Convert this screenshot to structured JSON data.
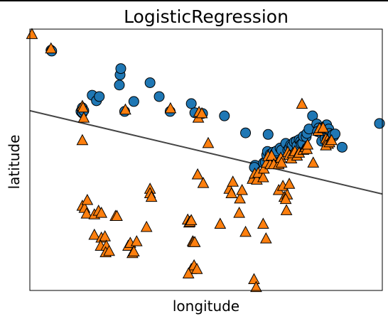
{
  "chart_data": {
    "type": "scatter",
    "title": "LogisticRegression",
    "xlabel": "longitude",
    "ylabel": "latitude",
    "xlim": [
      0,
      100
    ],
    "ylim": [
      0,
      100
    ],
    "grid": false,
    "ticks": false,
    "legend": "none",
    "decision_boundary": {
      "x": [
        0,
        100
      ],
      "y": [
        68.8,
        36.9
      ]
    },
    "boundary_color": "#444444",
    "series": [
      {
        "marker": "circle",
        "color": "#1f77b4",
        "points": [
          [
            6.0,
            91.9
          ],
          [
            6.2,
            91.6
          ],
          [
            14.9,
            69.9
          ],
          [
            14.5,
            68.5
          ],
          [
            14.9,
            67.9
          ],
          [
            14.9,
            68.2
          ],
          [
            15.3,
            68.8
          ],
          [
            17.7,
            74.7
          ],
          [
            18.9,
            72.6
          ],
          [
            19.7,
            74.2
          ],
          [
            25.6,
            82.5
          ],
          [
            25.8,
            84.9
          ],
          [
            25.4,
            78.6
          ],
          [
            26.9,
            68.5
          ],
          [
            29.5,
            72.3
          ],
          [
            34.1,
            79.5
          ],
          [
            36.7,
            74.2
          ],
          [
            39.8,
            68.5
          ],
          [
            45.8,
            71.5
          ],
          [
            46.8,
            68.0
          ],
          [
            49.0,
            67.7
          ],
          [
            55.2,
            66.8
          ],
          [
            61.2,
            60.3
          ],
          [
            67.6,
            59.7
          ],
          [
            63.9,
            47.9
          ],
          [
            63.7,
            47.1
          ],
          [
            66.3,
            48.8
          ],
          [
            66.8,
            49.0
          ],
          [
            67.2,
            51.8
          ],
          [
            67.4,
            53.2
          ],
          [
            68.2,
            52.1
          ],
          [
            68.8,
            51.0
          ],
          [
            69.0,
            52.9
          ],
          [
            69.6,
            52.6
          ],
          [
            70.0,
            53.4
          ],
          [
            71.0,
            54.5
          ],
          [
            71.4,
            53.7
          ],
          [
            72.6,
            56.3
          ],
          [
            73.2,
            53.7
          ],
          [
            73.6,
            54.5
          ],
          [
            74.0,
            55.7
          ],
          [
            74.4,
            55.4
          ],
          [
            75.0,
            56.8
          ],
          [
            75.6,
            57.1
          ],
          [
            75.8,
            55.4
          ],
          [
            76.4,
            57.7
          ],
          [
            76.8,
            57.1
          ],
          [
            77.0,
            56.0
          ],
          [
            77.4,
            56.3
          ],
          [
            77.6,
            59.0
          ],
          [
            78.4,
            58.8
          ],
          [
            78.6,
            60.1
          ],
          [
            79.2,
            61.8
          ],
          [
            80.2,
            66.8
          ],
          [
            81.4,
            63.7
          ],
          [
            82.0,
            62.2
          ],
          [
            81.6,
            60.8
          ],
          [
            82.6,
            60.3
          ],
          [
            83.2,
            60.8
          ],
          [
            84.2,
            63.4
          ],
          [
            84.8,
            61.8
          ],
          [
            85.0,
            60.1
          ],
          [
            82.8,
            57.1
          ],
          [
            83.8,
            58.2
          ],
          [
            84.4,
            57.9
          ],
          [
            85.4,
            58.5
          ],
          [
            86.2,
            59.0
          ],
          [
            86.0,
            59.6
          ],
          [
            86.6,
            59.9
          ],
          [
            88.6,
            54.8
          ],
          [
            99.2,
            63.9
          ]
        ]
      },
      {
        "marker": "triangle",
        "color": "#ff7f0e",
        "points": [
          [
            0.6,
            98.0
          ],
          [
            6.0,
            92.5
          ],
          [
            14.9,
            70.5
          ],
          [
            15.1,
            69.9
          ],
          [
            15.3,
            66.0
          ],
          [
            14.9,
            57.4
          ],
          [
            14.9,
            32.3
          ],
          [
            15.5,
            31.5
          ],
          [
            16.3,
            34.5
          ],
          [
            16.1,
            29.3
          ],
          [
            18.3,
            29.0
          ],
          [
            19.5,
            30.4
          ],
          [
            20.3,
            29.6
          ],
          [
            18.3,
            21.2
          ],
          [
            20.3,
            20.1
          ],
          [
            21.3,
            20.6
          ],
          [
            20.1,
            17.0
          ],
          [
            21.7,
            17.0
          ],
          [
            21.5,
            14.5
          ],
          [
            22.5,
            15.0
          ],
          [
            24.3,
            28.4
          ],
          [
            24.7,
            28.4
          ],
          [
            27.1,
            69.1
          ],
          [
            27.9,
            17.0
          ],
          [
            28.5,
            18.1
          ],
          [
            29.1,
            14.2
          ],
          [
            29.5,
            14.8
          ],
          [
            30.3,
            18.7
          ],
          [
            34.1,
            38.8
          ],
          [
            34.1,
            37.1
          ],
          [
            34.5,
            35.7
          ],
          [
            33.1,
            24.2
          ],
          [
            39.9,
            69.6
          ],
          [
            44.8,
            27.0
          ],
          [
            45.2,
            25.9
          ],
          [
            45.4,
            26.2
          ],
          [
            45.8,
            26.8
          ],
          [
            46.2,
            18.7
          ],
          [
            46.4,
            18.4
          ],
          [
            46.8,
            18.4
          ],
          [
            45.8,
            8.1
          ],
          [
            46.6,
            9.5
          ],
          [
            45.0,
            6.4
          ],
          [
            47.4,
            8.1
          ],
          [
            47.8,
            66.0
          ],
          [
            48.0,
            68.2
          ],
          [
            48.8,
            67.7
          ],
          [
            50.6,
            56.3
          ],
          [
            47.6,
            44.3
          ],
          [
            49.2,
            41.0
          ],
          [
            54.0,
            25.4
          ],
          [
            56.6,
            38.8
          ],
          [
            57.2,
            37.1
          ],
          [
            57.6,
            41.5
          ],
          [
            59.6,
            35.1
          ],
          [
            59.4,
            29.6
          ],
          [
            60.2,
            38.3
          ],
          [
            61.2,
            22.3
          ],
          [
            63.4,
            43.2
          ],
          [
            63.2,
            42.6
          ],
          [
            63.8,
            44.6
          ],
          [
            64.4,
            42.3
          ],
          [
            64.8,
            44.9
          ],
          [
            66.2,
            43.2
          ],
          [
            66.4,
            46.5
          ],
          [
            66.2,
            25.4
          ],
          [
            67.2,
            48.8
          ],
          [
            67.6,
            51.3
          ],
          [
            68.2,
            48.2
          ],
          [
            68.6,
            51.5
          ],
          [
            69.2,
            48.2
          ],
          [
            70.6,
            48.2
          ],
          [
            71.2,
            50.7
          ],
          [
            71.4,
            48.8
          ],
          [
            70.6,
            38.3
          ],
          [
            71.8,
            39.9
          ],
          [
            72.2,
            35.7
          ],
          [
            73.0,
            36.6
          ],
          [
            72.6,
            34.9
          ],
          [
            73.6,
            40.7
          ],
          [
            73.2,
            52.9
          ],
          [
            73.6,
            51.8
          ],
          [
            74.2,
            50.4
          ],
          [
            74.6,
            52.4
          ],
          [
            75.2,
            53.2
          ],
          [
            75.8,
            51.5
          ],
          [
            76.4,
            52.6
          ],
          [
            77.6,
            53.7
          ],
          [
            78.2,
            54.8
          ],
          [
            78.6,
            54.0
          ],
          [
            78.8,
            55.7
          ],
          [
            80.4,
            48.8
          ],
          [
            81.8,
            61.0
          ],
          [
            82.2,
            62.0
          ],
          [
            83.2,
            62.2
          ],
          [
            84.0,
            58.0
          ],
          [
            84.4,
            57.4
          ],
          [
            84.6,
            56.0
          ],
          [
            84.0,
            55.4
          ],
          [
            85.0,
            56.6
          ],
          [
            85.6,
            57.4
          ],
          [
            72.8,
            30.6
          ],
          [
            63.6,
            4.2
          ],
          [
            64.2,
            1.2
          ],
          [
            67.0,
            19.8
          ],
          [
            77.2,
            71.3
          ]
        ]
      }
    ]
  }
}
